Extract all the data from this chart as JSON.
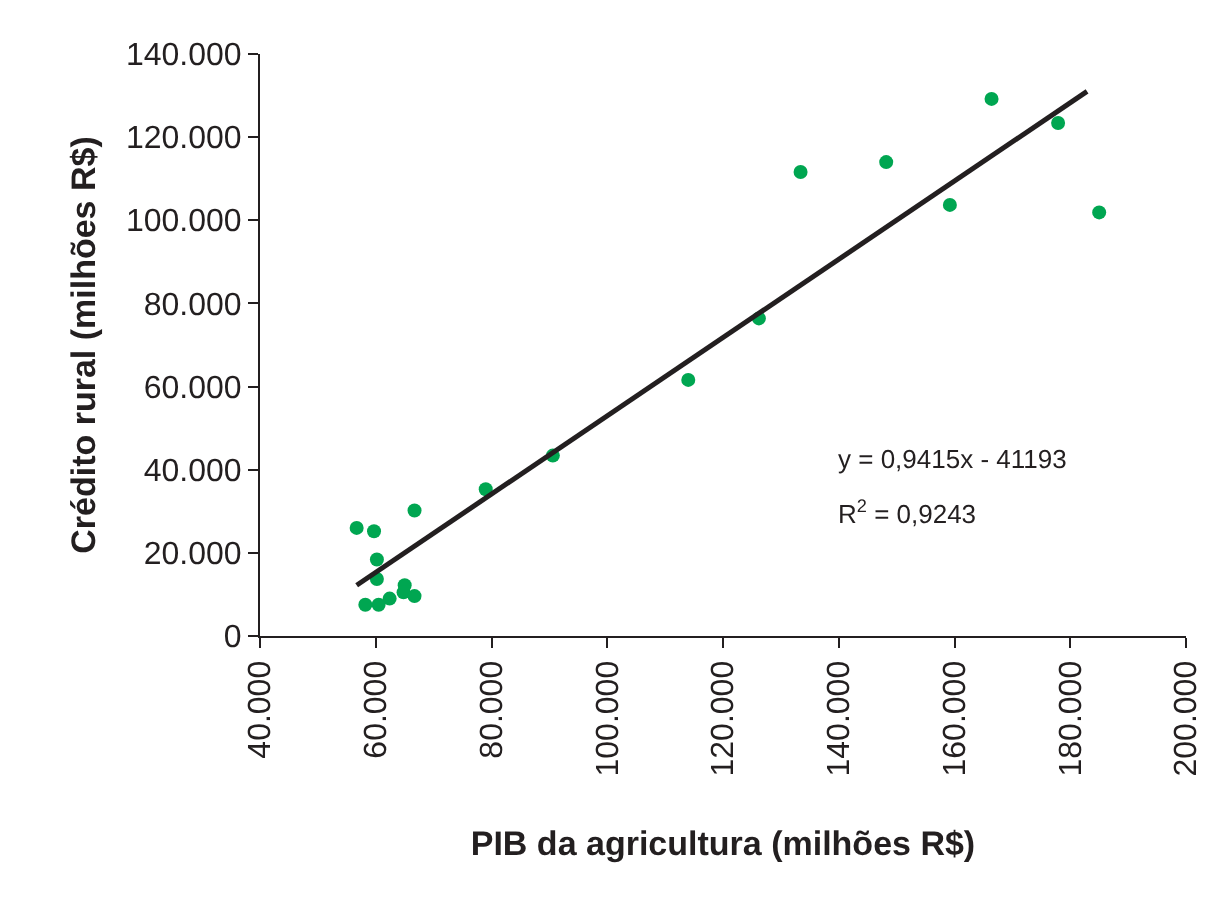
{
  "chart_data": {
    "type": "scatter",
    "xlabel": "PIB da agricultura (milhões R$)",
    "ylabel": "Crédito rural (milhões R$)",
    "xlim": [
      40000,
      200000
    ],
    "ylim": [
      0,
      140000
    ],
    "xticks": [
      {
        "value": 40000,
        "label": "40.000"
      },
      {
        "value": 60000,
        "label": "60.000"
      },
      {
        "value": 80000,
        "label": "80.000"
      },
      {
        "value": 100000,
        "label": "100.000"
      },
      {
        "value": 120000,
        "label": "120.000"
      },
      {
        "value": 140000,
        "label": "140.000"
      },
      {
        "value": 160000,
        "label": "160.000"
      },
      {
        "value": 180000,
        "label": "180.000"
      },
      {
        "value": 200000,
        "label": "200.000"
      }
    ],
    "yticks": [
      0,
      {
        "value": 20000,
        "label": "20.000"
      },
      {
        "value": 40000,
        "label": "40.000"
      },
      {
        "value": 60000,
        "label": "60.000"
      },
      {
        "value": 80000,
        "label": "80.000"
      },
      {
        "value": 100000,
        "label": "100.000"
      },
      {
        "value": 120000,
        "label": "120.000"
      },
      {
        "value": 140000,
        "label": "140.000"
      }
    ],
    "marker": "circle",
    "series": [
      {
        "color": "#00a651",
        "x": [
          56700,
          59700,
          60200,
          60200,
          66700,
          65000,
          64800,
          66700,
          62400,
          60500,
          58200,
          79000,
          90600,
          114000,
          126200,
          133400,
          148200,
          159200,
          166400,
          177900,
          185000
        ],
        "values": [
          26000,
          25200,
          18400,
          13700,
          30200,
          12200,
          10500,
          9600,
          9000,
          7500,
          7500,
          35300,
          43400,
          61600,
          76400,
          111600,
          114000,
          103700,
          129200,
          123400,
          101900
        ]
      },
      {
        "type": "line",
        "marker": "none",
        "color": "#231f20",
        "x": [
          56700,
          182900
        ],
        "values": [
          12200,
          131000
        ]
      }
    ],
    "annotations": [
      "y = 0,9415x - 41193",
      "R$^{2}$ = 0,9243"
    ]
  }
}
